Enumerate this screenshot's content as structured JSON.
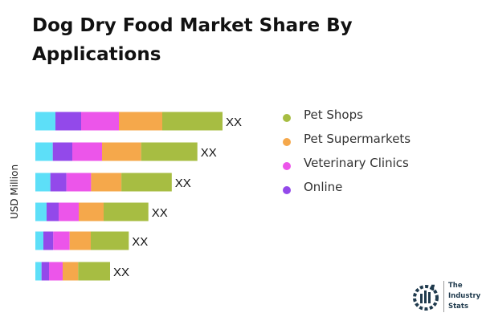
{
  "title": "Dog Dry Food Market Share By Applications",
  "chart_data": {
    "type": "bar",
    "orientation": "horizontal",
    "stacked": true,
    "title": "Dog Dry Food Market Share By Applications",
    "ylabel": "USD Million",
    "xlabel": "",
    "grid": false,
    "legend_position": "right",
    "data_labels": [
      "XX",
      "XX",
      "XX",
      "XX",
      "XX",
      "XX"
    ],
    "series": [
      {
        "color": "#5ddff8",
        "values": [
          25,
          21.7,
          18.7,
          14,
          10,
          7.7
        ]
      },
      {
        "name": "Online",
        "color": "#9349ea",
        "values": [
          32,
          24.3,
          20,
          15,
          12.3,
          9.3
        ]
      },
      {
        "name": "Veterinary Clinics",
        "color": "#ec55ea",
        "values": [
          47,
          37,
          30.7,
          25,
          20.4,
          17
        ]
      },
      {
        "name": "Pet Supermarkets",
        "color": "#f5a84b",
        "values": [
          54,
          48.7,
          37.7,
          31,
          26.3,
          19.3
        ]
      },
      {
        "name": "Pet Shops",
        "color": "#a7bd42",
        "values": [
          75,
          70,
          62.7,
          55.7,
          47.3,
          39.7
        ]
      }
    ]
  },
  "legend": [
    {
      "label": "Pet Shops",
      "color": "#a7bd42"
    },
    {
      "label": "Pet Supermarkets",
      "color": "#f5a84b"
    },
    {
      "label": "Veterinary Clinics",
      "color": "#ec55ea"
    },
    {
      "label": "Online",
      "color": "#9349ea"
    }
  ],
  "logo": {
    "line1": "The",
    "line2": "Industry",
    "line3": "Stats"
  }
}
